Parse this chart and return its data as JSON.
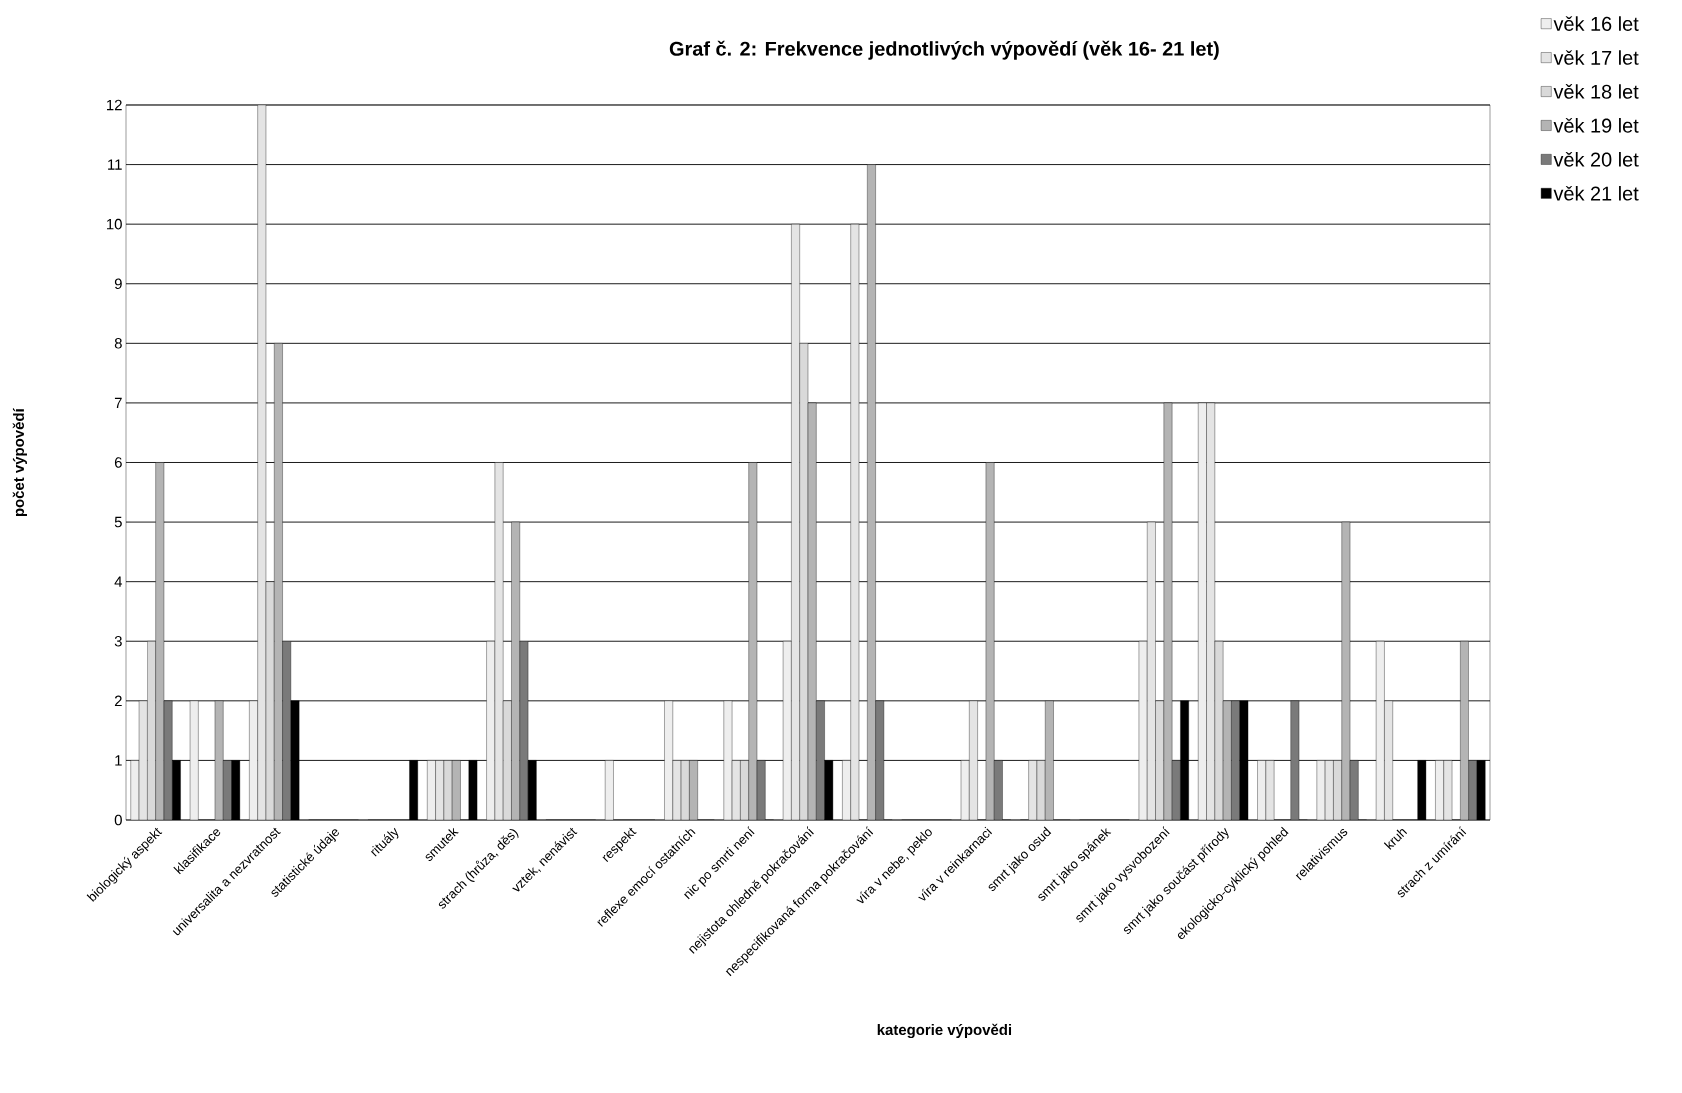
{
  "chart_data": {
    "type": "bar",
    "title": "**Graf č. 2:  Frekvence jednotlivých výpovědí (věk 16- 21 let)**",
    "xlabel": "**kategorie výpovědi**",
    "ylabel": "**počet výpovědí**",
    "categories": [
      "biologický aspekt",
      "klasifikace",
      "universalita a nezvratnost",
      "statistické údaje",
      "rituály",
      "smutek",
      "strach (hrůza, děs)",
      "vztek, nenávist",
      "respekt",
      "reflexe emocí ostatních",
      "nic po smrti není",
      "nejistota ohledně pokračování",
      "nespecifikovaná forma pokračování",
      "víra v nebe, peklo",
      "víra v reinkarnaci",
      "smrt jako osud",
      "smrt jako spánek",
      "smrt jako vysvobození",
      "smrt jako součást přírody",
      "ekologicko-cyklický pohled",
      "relativismus",
      "kruh",
      "strach z umírání"
    ],
    "series": [
      {
        "name": "věk 16 let",
        "color": "#eeeeee",
        "values": [
          1,
          2,
          2,
          0,
          0,
          1,
          3,
          0,
          1,
          2,
          2,
          3,
          1,
          0,
          1,
          0,
          0,
          3,
          7,
          1,
          1,
          3,
          1
        ]
      },
      {
        "name": "věk 17 let",
        "color": "#e4e4e4",
        "values": [
          2,
          0,
          12,
          0,
          0,
          1,
          6,
          0,
          0,
          1,
          1,
          10,
          10,
          0,
          2,
          1,
          0,
          5,
          7,
          1,
          1,
          2,
          1
        ]
      },
      {
        "name": "věk 18 let",
        "color": "#d9d9d9",
        "values": [
          3,
          0,
          4,
          0,
          0,
          1,
          2,
          0,
          0,
          1,
          1,
          8,
          0,
          0,
          0,
          1,
          0,
          2,
          3,
          0,
          1,
          0,
          0
        ]
      },
      {
        "name": "věk 19 let",
        "color": "#b4b4b4",
        "values": [
          6,
          2,
          8,
          0,
          0,
          1,
          5,
          0,
          0,
          1,
          6,
          7,
          11,
          0,
          6,
          2,
          0,
          7,
          2,
          0,
          5,
          0,
          3
        ]
      },
      {
        "name": "věk 20 let",
        "color": "#7a7a7a",
        "values": [
          2,
          1,
          3,
          0,
          0,
          0,
          3,
          0,
          0,
          0,
          1,
          2,
          2,
          0,
          1,
          0,
          0,
          1,
          2,
          2,
          1,
          0,
          1
        ]
      },
      {
        "name": "věk 21 let",
        "color": "#000000",
        "values": [
          1,
          1,
          2,
          0,
          1,
          1,
          1,
          0,
          0,
          0,
          0,
          1,
          0,
          0,
          0,
          0,
          0,
          2,
          2,
          0,
          0,
          1,
          1
        ]
      }
    ],
    "ylim": [
      0,
      12
    ],
    "yticks": [
      0,
      1,
      2,
      3,
      4,
      5,
      6,
      7,
      8,
      9,
      10,
      11,
      12
    ],
    "grid": "y",
    "legend": "top right"
  }
}
